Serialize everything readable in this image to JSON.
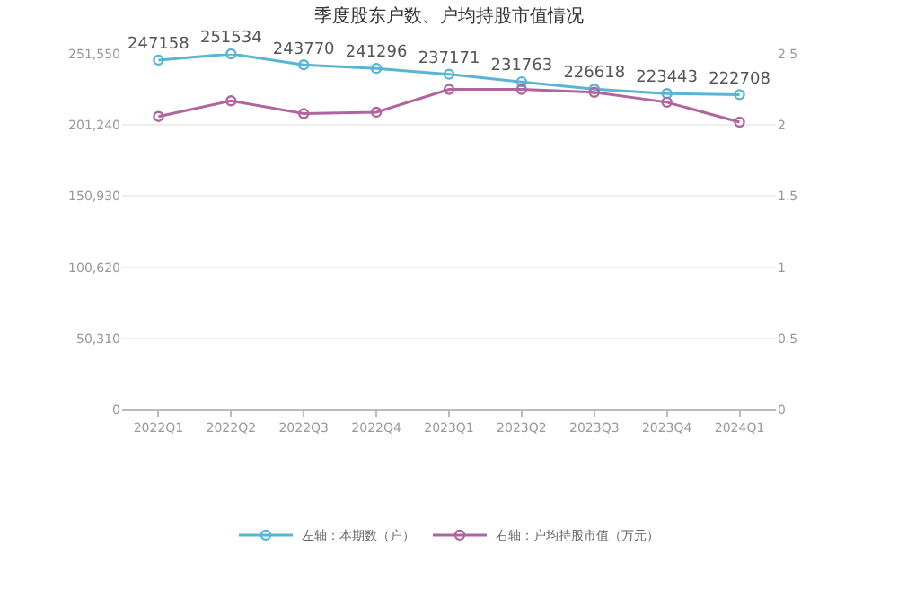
{
  "chart_data": {
    "type": "line",
    "title": "季度股东户数、户均持股市值情况",
    "categories": [
      "2022Q1",
      "2022Q2",
      "2022Q3",
      "2022Q4",
      "2023Q1",
      "2023Q2",
      "2023Q3",
      "2023Q4",
      "2024Q1"
    ],
    "series": [
      {
        "name": "左轴：本期数（户）",
        "color": "#5ab4d4",
        "values": [
          247158,
          251534,
          243770,
          241296,
          237171,
          231763,
          226618,
          223443,
          222708
        ],
        "value_labels": [
          "247158",
          "251534",
          "243770",
          "241296",
          "237171",
          "231763",
          "226618",
          "223443",
          "222708"
        ]
      },
      {
        "name": "右轴：户均持股市值（万元）",
        "color": "#b0659f",
        "axis": "y2",
        "values": [
          2.06,
          2.17,
          2.08,
          2.09,
          2.25,
          2.25,
          2.23,
          2.16,
          2.02
        ]
      }
    ],
    "ylim": [
      0,
      251550
    ],
    "yticks": [
      0,
      {
        "value": 50310,
        "label": "50,310"
      },
      {
        "value": 100620,
        "label": "100,620"
      },
      {
        "value": 150930,
        "label": "150,930"
      },
      {
        "value": 201240,
        "label": "201,240"
      },
      {
        "value": 251550,
        "label": "251,550"
      }
    ],
    "y2lim": [
      0,
      2.5
    ],
    "y2ticks": [
      0,
      0.5,
      1,
      1.5,
      2,
      2.5
    ],
    "grid": "y",
    "legend": "bottom",
    "marker": "circle",
    "line_style": "solid"
  }
}
